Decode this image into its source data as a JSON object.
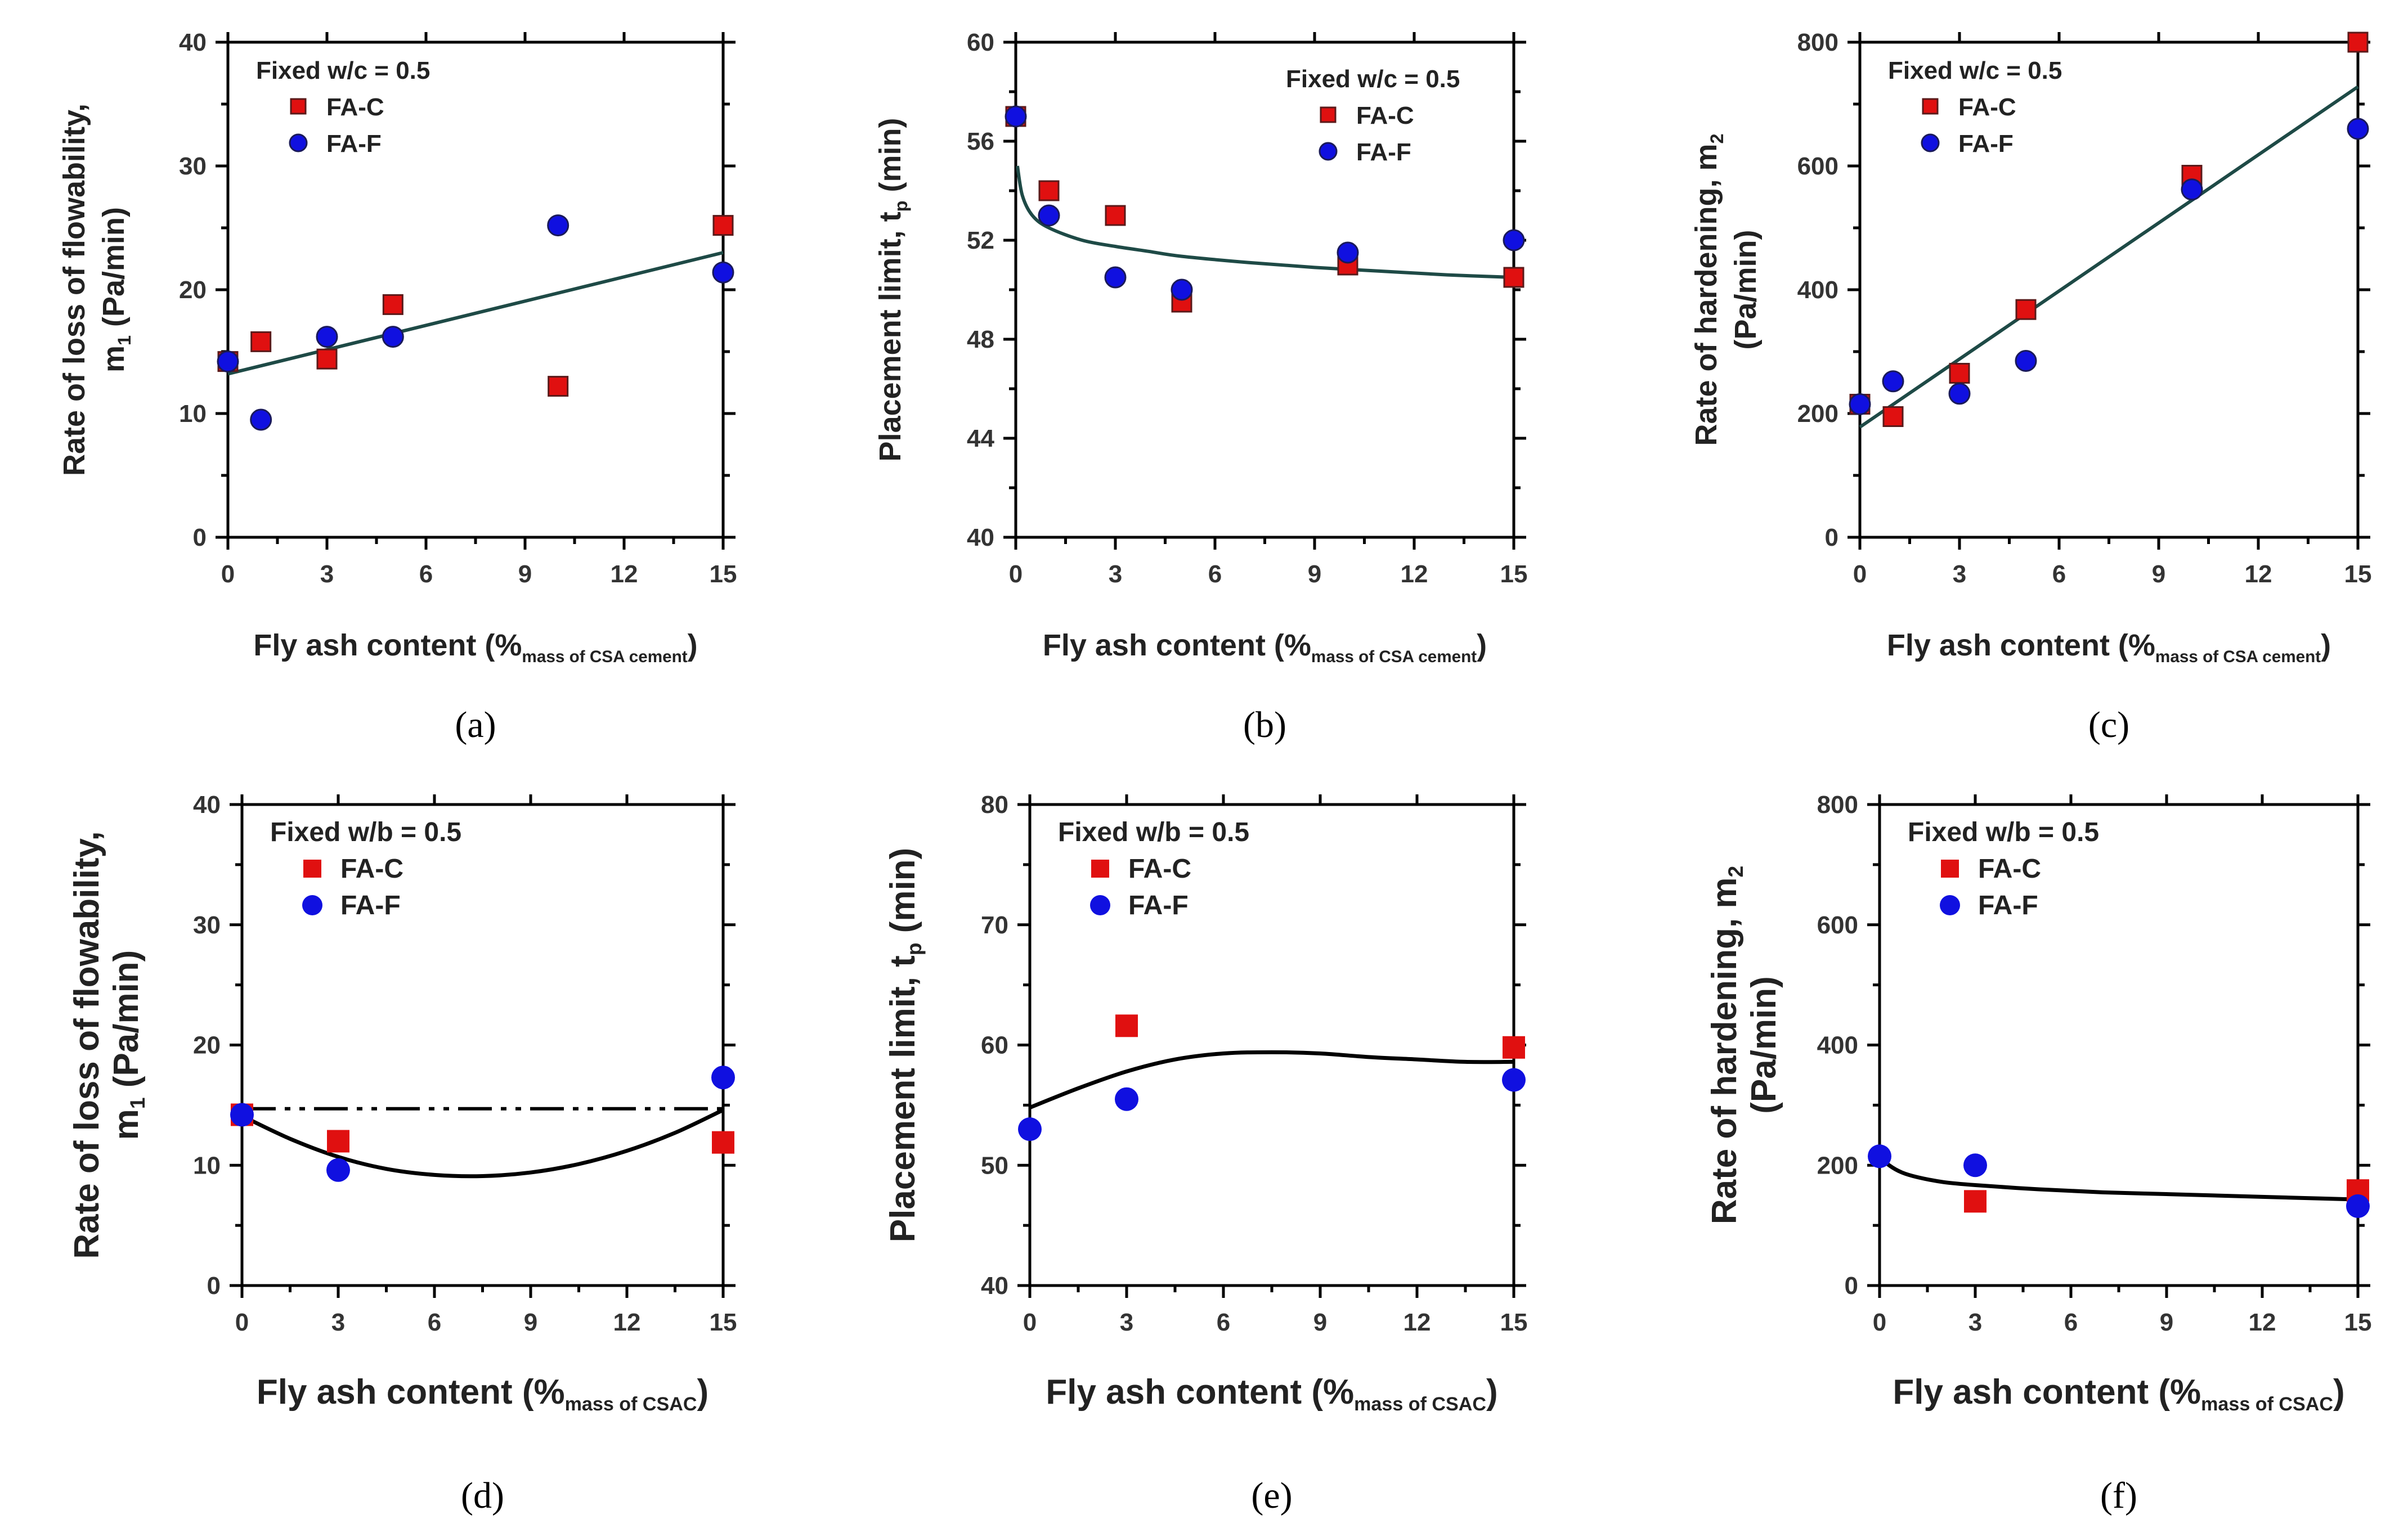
{
  "colors": {
    "fa_c": "#e01010",
    "fa_f": "#1010e0",
    "fit_top": "#1e4a46",
    "fit_bottom": "#000000"
  },
  "chart_data": [
    {
      "id": "a",
      "type": "scatter",
      "caption": "a",
      "xlabel": "Fly ash content (%",
      "xlabel_sub": "mass of CSA cement",
      "xlabel_end": ")",
      "ylabel_line1": "Rate of loss of flowability,",
      "ylabel_line2_pre": "m",
      "ylabel_line2_sub": "1",
      "ylabel_line2_post": " (Pa/min)",
      "xlim": [
        0,
        15
      ],
      "ylim": [
        0,
        40
      ],
      "xticks": [
        0,
        3,
        6,
        9,
        12,
        15
      ],
      "yticks": [
        0,
        10,
        20,
        30,
        40
      ],
      "legend_title": "Fixed w/c = 0.5",
      "series": [
        {
          "name": "FA-C",
          "marker": "square",
          "x": [
            0,
            1,
            3,
            5,
            10,
            15
          ],
          "y": [
            14.2,
            15.8,
            14.4,
            18.8,
            12.2,
            25.2
          ]
        },
        {
          "name": "FA-F",
          "marker": "circle",
          "x": [
            0,
            1,
            3,
            5,
            10,
            15
          ],
          "y": [
            14.2,
            9.5,
            16.2,
            16.2,
            25.2,
            21.4
          ]
        }
      ],
      "fit": {
        "kind": "linear",
        "x": [
          0,
          15
        ],
        "y": [
          13.2,
          23.0
        ]
      }
    },
    {
      "id": "b",
      "type": "scatter",
      "caption": "b",
      "xlabel": "Fly ash content (%",
      "xlabel_sub": "mass of CSA cement",
      "xlabel_end": ")",
      "ylabel_line1": "",
      "ylabel_line2_pre": "Placement limit, t",
      "ylabel_line2_sub": "p",
      "ylabel_line2_post": " (min)",
      "xlim": [
        0,
        15
      ],
      "ylim": [
        40,
        60
      ],
      "xticks": [
        0,
        3,
        6,
        9,
        12,
        15
      ],
      "yticks": [
        40,
        44,
        48,
        52,
        56,
        60
      ],
      "legend_title": "Fixed w/c = 0.5",
      "series": [
        {
          "name": "FA-C",
          "marker": "square",
          "x": [
            0,
            1,
            3,
            5,
            10,
            15
          ],
          "y": [
            57.0,
            54.0,
            53.0,
            49.5,
            51.0,
            50.5
          ]
        },
        {
          "name": "FA-F",
          "marker": "circle",
          "x": [
            0,
            1,
            3,
            5,
            10,
            15
          ],
          "y": [
            57.0,
            53.0,
            50.5,
            50.0,
            51.5,
            52.0
          ]
        }
      ],
      "fit": {
        "kind": "curve",
        "x": [
          0.05,
          0.2,
          0.5,
          1,
          2,
          3,
          4,
          5,
          7,
          9,
          11,
          13,
          15
        ],
        "y": [
          55.0,
          53.8,
          53.0,
          52.5,
          52.0,
          51.75,
          51.55,
          51.35,
          51.1,
          50.9,
          50.75,
          50.6,
          50.5
        ]
      }
    },
    {
      "id": "c",
      "type": "scatter",
      "caption": "c",
      "xlabel": "Fly ash content (%",
      "xlabel_sub": "mass of CSA cement",
      "xlabel_end": ")",
      "ylabel_line1_pre": "Rate of hardening, m",
      "ylabel_line1_sub": "2",
      "ylabel_line2": "(Pa/min)",
      "xlim": [
        0,
        15
      ],
      "ylim": [
        0,
        800
      ],
      "xticks": [
        0,
        3,
        6,
        9,
        12,
        15
      ],
      "yticks": [
        0,
        200,
        400,
        600,
        800
      ],
      "legend_title": "Fixed w/c = 0.5",
      "series": [
        {
          "name": "FA-C",
          "marker": "square",
          "x": [
            0,
            1,
            3,
            5,
            10,
            15
          ],
          "y": [
            215,
            195,
            265,
            368,
            585,
            800
          ]
        },
        {
          "name": "FA-F",
          "marker": "circle",
          "x": [
            0,
            1,
            3,
            5,
            10,
            15
          ],
          "y": [
            215,
            252,
            232,
            285,
            562,
            660
          ]
        }
      ],
      "fit": {
        "kind": "linear",
        "x": [
          0,
          15
        ],
        "y": [
          178,
          728
        ]
      }
    },
    {
      "id": "d",
      "type": "scatter",
      "caption": "d",
      "xlabel": "Fly ash content (%",
      "xlabel_sub": "mass of CSAC",
      "xlabel_end": ")",
      "ylabel_line1": "Rate of loss of flowability,",
      "ylabel_line2_pre": "m",
      "ylabel_line2_sub": "1",
      "ylabel_line2_post": " (Pa/min)",
      "xlim": [
        0,
        15
      ],
      "ylim": [
        0,
        40
      ],
      "xticks": [
        0,
        3,
        6,
        9,
        12,
        15
      ],
      "yticks": [
        0,
        10,
        20,
        30,
        40
      ],
      "legend_title": "Fixed w/b = 0.5",
      "series": [
        {
          "name": "FA-C",
          "marker": "square",
          "x": [
            0,
            3,
            15
          ],
          "y": [
            14.2,
            12.0,
            11.9
          ]
        },
        {
          "name": "FA-F",
          "marker": "circle",
          "x": [
            0,
            3,
            15
          ],
          "y": [
            14.2,
            9.6,
            17.3
          ]
        }
      ],
      "fit": {
        "kind": "curve",
        "x": [
          0,
          1.5,
          3,
          4.5,
          6,
          7.5,
          9,
          10.5,
          12,
          13.5,
          15
        ],
        "y": [
          14.1,
          12.2,
          10.7,
          9.7,
          9.2,
          9.1,
          9.4,
          10.1,
          11.2,
          12.7,
          14.6
        ]
      },
      "reference": {
        "kind": "horizontal",
        "y": 14.7,
        "x": [
          0,
          15
        ]
      }
    },
    {
      "id": "e",
      "type": "scatter",
      "caption": "e",
      "xlabel": "Fly ash content (%",
      "xlabel_sub": "mass of CSAC",
      "xlabel_end": ")",
      "ylabel_line1": "",
      "ylabel_line2_pre": "Placement limit, t",
      "ylabel_line2_sub": "p",
      "ylabel_line2_post": " (min)",
      "xlim": [
        0,
        15
      ],
      "ylim": [
        40,
        80
      ],
      "xticks": [
        0,
        3,
        6,
        9,
        12,
        15
      ],
      "yticks": [
        40,
        50,
        60,
        70,
        80
      ],
      "legend_title": "Fixed w/b = 0.5",
      "series": [
        {
          "name": "FA-C",
          "marker": "square",
          "x": [
            3,
            15
          ],
          "y": [
            61.6,
            59.8
          ]
        },
        {
          "name": "FA-F",
          "marker": "circle",
          "x": [
            0,
            3,
            15
          ],
          "y": [
            53.0,
            55.5,
            57.1
          ]
        }
      ],
      "fit": {
        "kind": "curve",
        "x": [
          0,
          1.5,
          3,
          4.5,
          6,
          7.5,
          9,
          10.5,
          12,
          13.5,
          15
        ],
        "y": [
          54.8,
          56.4,
          57.8,
          58.8,
          59.3,
          59.4,
          59.3,
          59.0,
          58.8,
          58.6,
          58.6
        ]
      }
    },
    {
      "id": "f",
      "type": "scatter",
      "caption": "f",
      "xlabel": "Fly ash content (%",
      "xlabel_sub": "mass of CSAC",
      "xlabel_end": ")",
      "ylabel_line1_pre": "Rate of hardening, m",
      "ylabel_line1_sub": "2",
      "ylabel_line2": "(Pa/min)",
      "xlim": [
        0,
        15
      ],
      "ylim": [
        0,
        800
      ],
      "xticks": [
        0,
        3,
        6,
        9,
        12,
        15
      ],
      "yticks": [
        0,
        200,
        400,
        600,
        800
      ],
      "legend_title": "Fixed w/b = 0.5",
      "series": [
        {
          "name": "FA-C",
          "marker": "square",
          "x": [
            3,
            15
          ],
          "y": [
            140,
            158
          ]
        },
        {
          "name": "FA-F",
          "marker": "circle",
          "x": [
            0,
            3,
            15
          ],
          "y": [
            215,
            200,
            132
          ]
        }
      ],
      "fit": {
        "kind": "curve",
        "x": [
          0,
          0.3,
          0.7,
          1.2,
          2,
          3,
          5,
          7,
          9,
          11,
          13,
          15
        ],
        "y": [
          215,
          200,
          188,
          180,
          172,
          167,
          160,
          155,
          152,
          149,
          146,
          143
        ]
      }
    }
  ]
}
